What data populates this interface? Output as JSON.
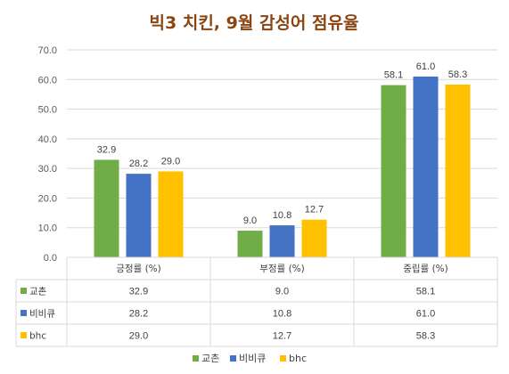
{
  "chart_data": {
    "type": "bar",
    "title": "빅3 치킨, 9월 감성어 점유율",
    "categories": [
      "긍정률 (%)",
      "부정률 (%)",
      "중립률 (%)"
    ],
    "ylim": [
      0,
      70
    ],
    "yticks": [
      "0.0",
      "10.0",
      "20.0",
      "30.0",
      "40.0",
      "50.0",
      "60.0",
      "70.0"
    ],
    "grid": true,
    "legend": "bottom",
    "series": [
      {
        "name": "교촌",
        "color": "#70ad47",
        "values": [
          32.9,
          9.0,
          58.1
        ],
        "labels": [
          "32.9",
          "9.0",
          "58.1"
        ]
      },
      {
        "name": "비비큐",
        "color": "#4472c4",
        "values": [
          28.2,
          10.8,
          61.0
        ],
        "labels": [
          "28.2",
          "10.8",
          "61.0"
        ]
      },
      {
        "name": "bhc",
        "color": "#ffc000",
        "values": [
          29.0,
          12.7,
          58.3
        ],
        "labels": [
          "29.0",
          "12.7",
          "58.3"
        ]
      }
    ],
    "title_color": "#8b4513"
  }
}
